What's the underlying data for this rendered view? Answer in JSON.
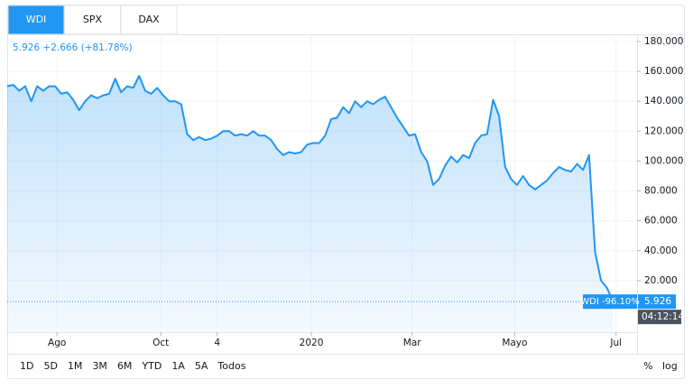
{
  "tabs": [
    "WDI",
    "SPX",
    "DAX"
  ],
  "range_buttons": [
    "1D",
    "5D",
    "1M",
    "3M",
    "6M",
    "YTD",
    "1A",
    "5A",
    "Todos"
  ],
  "scale_buttons": [
    "%",
    "log"
  ],
  "chart_data": {
    "type": "area",
    "legend_text": "5.926 +2.666 (+81.78%)",
    "time_label": "04:12:14",
    "grid": true,
    "series": [
      {
        "name": "WDI",
        "color": "#2196f3",
        "change_label": "-96.10%",
        "values": [
          150,
          151,
          147,
          150,
          140,
          150,
          147,
          150,
          150,
          145,
          146,
          141,
          134,
          140,
          144,
          142,
          144,
          145,
          155,
          146,
          150,
          149,
          157,
          147,
          145,
          149,
          144,
          140,
          140,
          138,
          118,
          114,
          116,
          114,
          115,
          117,
          120,
          120,
          117,
          118,
          117,
          120,
          117,
          117,
          114,
          108,
          104,
          106,
          105,
          106,
          111,
          112,
          112,
          117,
          128,
          129,
          136,
          132,
          140,
          136,
          140,
          138,
          141,
          143,
          136,
          129,
          123,
          117,
          118,
          106,
          100,
          84,
          88,
          97,
          103,
          99,
          104,
          102,
          112,
          117,
          118,
          141,
          130,
          96,
          88,
          84,
          90,
          84,
          81,
          84,
          87,
          92,
          96,
          94,
          93,
          98,
          94,
          104,
          39,
          20,
          15,
          5.926
        ]
      }
    ],
    "xlim": [
      0,
      105
    ],
    "xticks": [
      {
        "value": 8.3,
        "label": "Ago"
      },
      {
        "value": 25.6,
        "label": "Oct"
      },
      {
        "value": 35,
        "label": "4"
      },
      {
        "value": 50.7,
        "label": "2020"
      },
      {
        "value": 67.5,
        "label": "Mar"
      },
      {
        "value": 84.6,
        "label": "Mayo"
      },
      {
        "value": 101.5,
        "label": "Jul"
      }
    ],
    "ylim": [
      -14.5,
      184.8
    ],
    "yticks": [
      {
        "value": 20,
        "label": "20.000"
      },
      {
        "value": 40,
        "label": "40.000"
      },
      {
        "value": 60,
        "label": "60.000"
      },
      {
        "value": 80,
        "label": "80.000"
      },
      {
        "value": 100,
        "label": "100.000"
      },
      {
        "value": 120,
        "label": "120.000"
      },
      {
        "value": 140,
        "label": "140.000"
      },
      {
        "value": 160,
        "label": "160.000"
      },
      {
        "value": 180,
        "label": "180.000"
      }
    ]
  }
}
